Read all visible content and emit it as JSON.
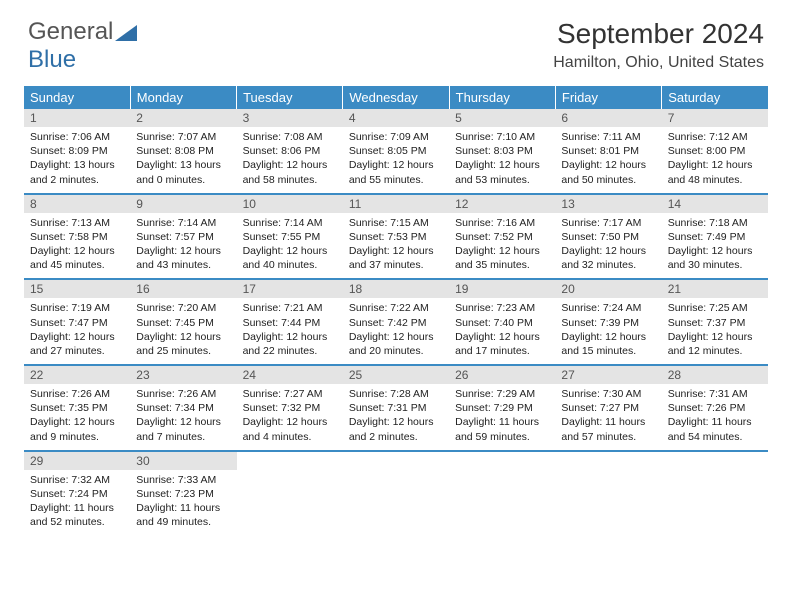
{
  "logo": {
    "text_gray": "General",
    "text_blue": "Blue"
  },
  "title": "September 2024",
  "location": "Hamilton, Ohio, United States",
  "colors": {
    "header_bg": "#3b8bc4",
    "header_text": "#ffffff",
    "daynum_bg": "#e4e4e4",
    "daynum_text": "#555555",
    "border": "#3b8bc4",
    "body_text": "#222222",
    "title_text": "#333333",
    "logo_gray": "#555555",
    "logo_blue": "#2f6fa7"
  },
  "typography": {
    "title_fontsize": 28,
    "location_fontsize": 16,
    "dayheader_fontsize": 13,
    "daynum_fontsize": 12,
    "dayinfo_fontsize": 10.5
  },
  "day_headers": [
    "Sunday",
    "Monday",
    "Tuesday",
    "Wednesday",
    "Thursday",
    "Friday",
    "Saturday"
  ],
  "days": [
    {
      "n": "1",
      "sunrise": "Sunrise: 7:06 AM",
      "sunset": "Sunset: 8:09 PM",
      "daylight": "Daylight: 13 hours and 2 minutes."
    },
    {
      "n": "2",
      "sunrise": "Sunrise: 7:07 AM",
      "sunset": "Sunset: 8:08 PM",
      "daylight": "Daylight: 13 hours and 0 minutes."
    },
    {
      "n": "3",
      "sunrise": "Sunrise: 7:08 AM",
      "sunset": "Sunset: 8:06 PM",
      "daylight": "Daylight: 12 hours and 58 minutes."
    },
    {
      "n": "4",
      "sunrise": "Sunrise: 7:09 AM",
      "sunset": "Sunset: 8:05 PM",
      "daylight": "Daylight: 12 hours and 55 minutes."
    },
    {
      "n": "5",
      "sunrise": "Sunrise: 7:10 AM",
      "sunset": "Sunset: 8:03 PM",
      "daylight": "Daylight: 12 hours and 53 minutes."
    },
    {
      "n": "6",
      "sunrise": "Sunrise: 7:11 AM",
      "sunset": "Sunset: 8:01 PM",
      "daylight": "Daylight: 12 hours and 50 minutes."
    },
    {
      "n": "7",
      "sunrise": "Sunrise: 7:12 AM",
      "sunset": "Sunset: 8:00 PM",
      "daylight": "Daylight: 12 hours and 48 minutes."
    },
    {
      "n": "8",
      "sunrise": "Sunrise: 7:13 AM",
      "sunset": "Sunset: 7:58 PM",
      "daylight": "Daylight: 12 hours and 45 minutes."
    },
    {
      "n": "9",
      "sunrise": "Sunrise: 7:14 AM",
      "sunset": "Sunset: 7:57 PM",
      "daylight": "Daylight: 12 hours and 43 minutes."
    },
    {
      "n": "10",
      "sunrise": "Sunrise: 7:14 AM",
      "sunset": "Sunset: 7:55 PM",
      "daylight": "Daylight: 12 hours and 40 minutes."
    },
    {
      "n": "11",
      "sunrise": "Sunrise: 7:15 AM",
      "sunset": "Sunset: 7:53 PM",
      "daylight": "Daylight: 12 hours and 37 minutes."
    },
    {
      "n": "12",
      "sunrise": "Sunrise: 7:16 AM",
      "sunset": "Sunset: 7:52 PM",
      "daylight": "Daylight: 12 hours and 35 minutes."
    },
    {
      "n": "13",
      "sunrise": "Sunrise: 7:17 AM",
      "sunset": "Sunset: 7:50 PM",
      "daylight": "Daylight: 12 hours and 32 minutes."
    },
    {
      "n": "14",
      "sunrise": "Sunrise: 7:18 AM",
      "sunset": "Sunset: 7:49 PM",
      "daylight": "Daylight: 12 hours and 30 minutes."
    },
    {
      "n": "15",
      "sunrise": "Sunrise: 7:19 AM",
      "sunset": "Sunset: 7:47 PM",
      "daylight": "Daylight: 12 hours and 27 minutes."
    },
    {
      "n": "16",
      "sunrise": "Sunrise: 7:20 AM",
      "sunset": "Sunset: 7:45 PM",
      "daylight": "Daylight: 12 hours and 25 minutes."
    },
    {
      "n": "17",
      "sunrise": "Sunrise: 7:21 AM",
      "sunset": "Sunset: 7:44 PM",
      "daylight": "Daylight: 12 hours and 22 minutes."
    },
    {
      "n": "18",
      "sunrise": "Sunrise: 7:22 AM",
      "sunset": "Sunset: 7:42 PM",
      "daylight": "Daylight: 12 hours and 20 minutes."
    },
    {
      "n": "19",
      "sunrise": "Sunrise: 7:23 AM",
      "sunset": "Sunset: 7:40 PM",
      "daylight": "Daylight: 12 hours and 17 minutes."
    },
    {
      "n": "20",
      "sunrise": "Sunrise: 7:24 AM",
      "sunset": "Sunset: 7:39 PM",
      "daylight": "Daylight: 12 hours and 15 minutes."
    },
    {
      "n": "21",
      "sunrise": "Sunrise: 7:25 AM",
      "sunset": "Sunset: 7:37 PM",
      "daylight": "Daylight: 12 hours and 12 minutes."
    },
    {
      "n": "22",
      "sunrise": "Sunrise: 7:26 AM",
      "sunset": "Sunset: 7:35 PM",
      "daylight": "Daylight: 12 hours and 9 minutes."
    },
    {
      "n": "23",
      "sunrise": "Sunrise: 7:26 AM",
      "sunset": "Sunset: 7:34 PM",
      "daylight": "Daylight: 12 hours and 7 minutes."
    },
    {
      "n": "24",
      "sunrise": "Sunrise: 7:27 AM",
      "sunset": "Sunset: 7:32 PM",
      "daylight": "Daylight: 12 hours and 4 minutes."
    },
    {
      "n": "25",
      "sunrise": "Sunrise: 7:28 AM",
      "sunset": "Sunset: 7:31 PM",
      "daylight": "Daylight: 12 hours and 2 minutes."
    },
    {
      "n": "26",
      "sunrise": "Sunrise: 7:29 AM",
      "sunset": "Sunset: 7:29 PM",
      "daylight": "Daylight: 11 hours and 59 minutes."
    },
    {
      "n": "27",
      "sunrise": "Sunrise: 7:30 AM",
      "sunset": "Sunset: 7:27 PM",
      "daylight": "Daylight: 11 hours and 57 minutes."
    },
    {
      "n": "28",
      "sunrise": "Sunrise: 7:31 AM",
      "sunset": "Sunset: 7:26 PM",
      "daylight": "Daylight: 11 hours and 54 minutes."
    },
    {
      "n": "29",
      "sunrise": "Sunrise: 7:32 AM",
      "sunset": "Sunset: 7:24 PM",
      "daylight": "Daylight: 11 hours and 52 minutes."
    },
    {
      "n": "30",
      "sunrise": "Sunrise: 7:33 AM",
      "sunset": "Sunset: 7:23 PM",
      "daylight": "Daylight: 11 hours and 49 minutes."
    }
  ]
}
